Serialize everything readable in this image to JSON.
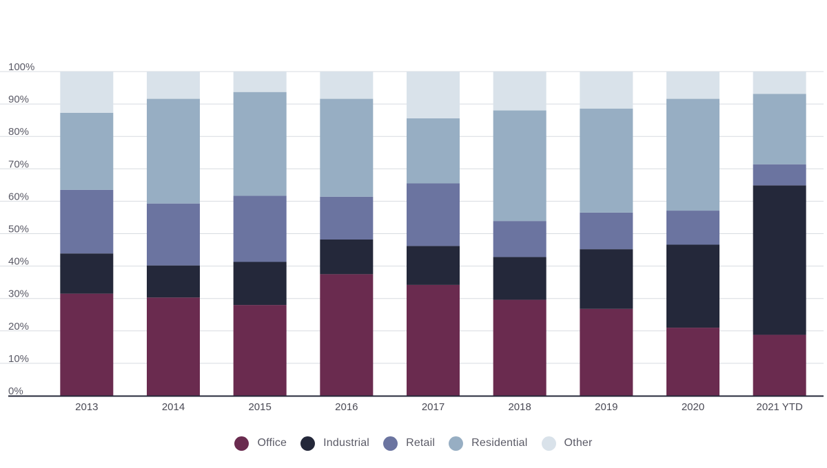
{
  "chart_data": {
    "type": "bar",
    "stacked": true,
    "categories": [
      "2013",
      "2014",
      "2015",
      "2016",
      "2017",
      "2018",
      "2019",
      "2020",
      "2021 YTD"
    ],
    "series": [
      {
        "name": "Office",
        "color": "#6a2b4f",
        "values": [
          31.5,
          30.3,
          28.0,
          37.5,
          34.2,
          29.6,
          26.8,
          21.0,
          18.8
        ]
      },
      {
        "name": "Industrial",
        "color": "#24283a",
        "values": [
          12.4,
          9.9,
          13.3,
          10.7,
          12.0,
          13.2,
          18.4,
          25.6,
          46.1
        ]
      },
      {
        "name": "Retail",
        "color": "#6b74a0",
        "values": [
          19.6,
          19.1,
          20.4,
          13.2,
          19.3,
          11.1,
          11.3,
          10.5,
          6.5
        ]
      },
      {
        "name": "Residential",
        "color": "#97aec3",
        "values": [
          23.8,
          32.3,
          32.0,
          30.2,
          20.1,
          34.1,
          32.1,
          34.5,
          21.7
        ]
      },
      {
        "name": "Other",
        "color": "#d9e2ea",
        "values": [
          12.7,
          8.4,
          6.3,
          8.4,
          14.4,
          12.0,
          11.4,
          8.4,
          6.9
        ]
      }
    ],
    "ylim": [
      0,
      100
    ],
    "yticks": [
      "0%",
      "10%",
      "20%",
      "30%",
      "40%",
      "50%",
      "60%",
      "70%",
      "80%",
      "90%",
      "100%"
    ],
    "grid": true,
    "legend_position": "bottom-center"
  }
}
